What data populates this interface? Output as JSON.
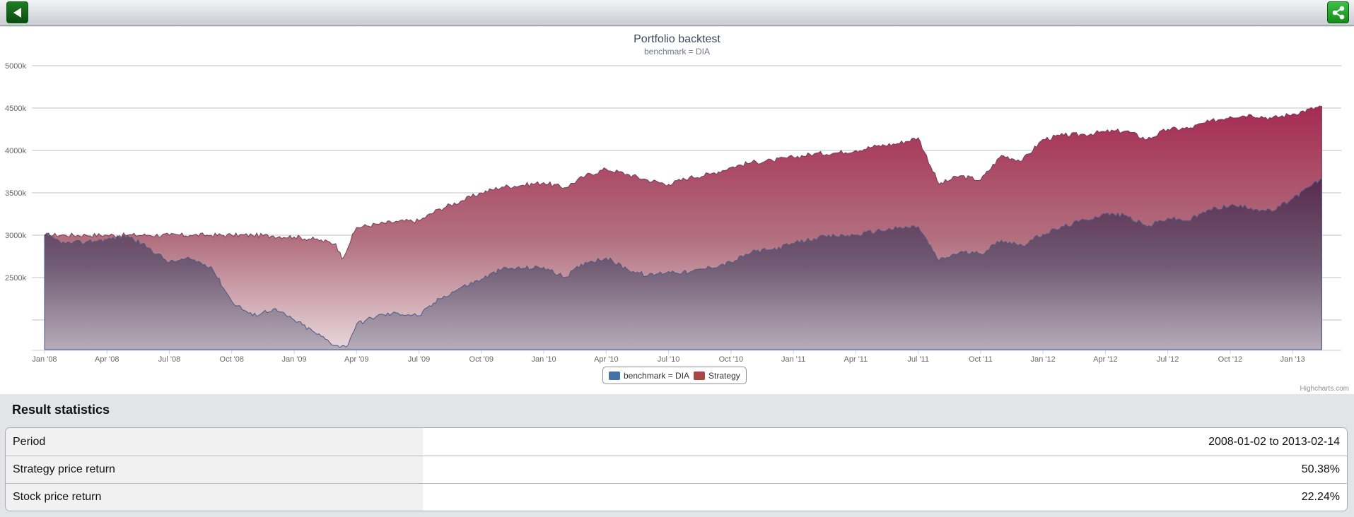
{
  "toolbar": {
    "back_icon": "back-arrow-icon",
    "share_icon": "share-icon"
  },
  "chart_data": {
    "type": "area",
    "title": "Portfolio backtest",
    "subtitle": "benchmark = DIA",
    "y_ticks": [
      "5000k",
      "4500k",
      "4000k",
      "3500k",
      "3000k",
      "2500k"
    ],
    "y_tick_values": [
      5000,
      4500,
      4000,
      3500,
      3000,
      2500
    ],
    "ylim": [
      1650,
      5000
    ],
    "x_ticks": [
      "Jan '08",
      "Apr '08",
      "Jul '08",
      "Oct '08",
      "Jan '09",
      "Apr '09",
      "Jul '09",
      "Oct '09",
      "Jan '10",
      "Apr '10",
      "Jul '10",
      "Oct '10",
      "Jan '11",
      "Apr '11",
      "Jul '11",
      "Oct '11",
      "Jan '12",
      "Apr '12",
      "Jul '12",
      "Oct '12",
      "Jan '13"
    ],
    "x_tick_months": [
      0,
      3,
      6,
      9,
      12,
      15,
      18,
      21,
      24,
      27,
      30,
      33,
      36,
      39,
      42,
      45,
      48,
      51,
      54,
      57,
      60
    ],
    "xlim_months": [
      0,
      61.5
    ],
    "grid": true,
    "legend_position": "bottom-center",
    "series": [
      {
        "name": "benchmark = DIA",
        "color": "#4572a7",
        "points": [
          [
            0,
            3000
          ],
          [
            1,
            2900
          ],
          [
            2,
            2920
          ],
          [
            3,
            2950
          ],
          [
            4,
            2990
          ],
          [
            5,
            2850
          ],
          [
            6,
            2680
          ],
          [
            7,
            2720
          ],
          [
            8,
            2630
          ],
          [
            9,
            2220
          ],
          [
            10,
            2050
          ],
          [
            11,
            2130
          ],
          [
            12,
            2000
          ],
          [
            13,
            1850
          ],
          [
            14,
            1700
          ],
          [
            14.5,
            1680
          ],
          [
            15,
            1950
          ],
          [
            16,
            2050
          ],
          [
            17,
            2080
          ],
          [
            18,
            2050
          ],
          [
            19,
            2250
          ],
          [
            20,
            2380
          ],
          [
            21,
            2480
          ],
          [
            22,
            2600
          ],
          [
            23,
            2610
          ],
          [
            24,
            2620
          ],
          [
            25,
            2500
          ],
          [
            26,
            2680
          ],
          [
            27,
            2730
          ],
          [
            28,
            2600
          ],
          [
            29,
            2520
          ],
          [
            30,
            2570
          ],
          [
            31,
            2560
          ],
          [
            32,
            2620
          ],
          [
            33,
            2680
          ],
          [
            34,
            2800
          ],
          [
            35,
            2830
          ],
          [
            36,
            2900
          ],
          [
            37,
            2960
          ],
          [
            38,
            2990
          ],
          [
            39,
            3000
          ],
          [
            40,
            3050
          ],
          [
            41,
            3080
          ],
          [
            42,
            3100
          ],
          [
            43,
            2700
          ],
          [
            44,
            2800
          ],
          [
            45,
            2780
          ],
          [
            46,
            2940
          ],
          [
            47,
            2880
          ],
          [
            48,
            3010
          ],
          [
            49,
            3100
          ],
          [
            50,
            3180
          ],
          [
            51,
            3250
          ],
          [
            52,
            3230
          ],
          [
            53,
            3100
          ],
          [
            54,
            3200
          ],
          [
            55,
            3170
          ],
          [
            56,
            3300
          ],
          [
            57,
            3350
          ],
          [
            58,
            3320
          ],
          [
            59,
            3280
          ],
          [
            60,
            3430
          ],
          [
            61.4,
            3670
          ]
        ]
      },
      {
        "name": "Strategy",
        "color": "#aa4643",
        "points": [
          [
            0,
            3000
          ],
          [
            1,
            3000
          ],
          [
            2,
            3000
          ],
          [
            3,
            3000
          ],
          [
            4,
            3000
          ],
          [
            5,
            3000
          ],
          [
            6,
            3000
          ],
          [
            7,
            3000
          ],
          [
            8,
            3000
          ],
          [
            9,
            3000
          ],
          [
            10,
            3000
          ],
          [
            11,
            2990
          ],
          [
            12,
            2980
          ],
          [
            13,
            2950
          ],
          [
            14,
            2900
          ],
          [
            14.3,
            2720
          ],
          [
            15,
            3090
          ],
          [
            16,
            3130
          ],
          [
            17,
            3160
          ],
          [
            18,
            3170
          ],
          [
            19,
            3310
          ],
          [
            20,
            3400
          ],
          [
            21,
            3500
          ],
          [
            22,
            3570
          ],
          [
            23,
            3590
          ],
          [
            24,
            3620
          ],
          [
            25,
            3560
          ],
          [
            26,
            3700
          ],
          [
            27,
            3780
          ],
          [
            28,
            3720
          ],
          [
            29,
            3650
          ],
          [
            30,
            3600
          ],
          [
            31,
            3680
          ],
          [
            32,
            3720
          ],
          [
            33,
            3800
          ],
          [
            34,
            3860
          ],
          [
            35,
            3880
          ],
          [
            36,
            3920
          ],
          [
            37,
            3960
          ],
          [
            38,
            3970
          ],
          [
            39,
            4000
          ],
          [
            40,
            4050
          ],
          [
            41,
            4080
          ],
          [
            42,
            4150
          ],
          [
            43,
            3600
          ],
          [
            44,
            3700
          ],
          [
            45,
            3650
          ],
          [
            46,
            3940
          ],
          [
            47,
            3880
          ],
          [
            48,
            4130
          ],
          [
            49,
            4180
          ],
          [
            50,
            4190
          ],
          [
            51,
            4220
          ],
          [
            52,
            4230
          ],
          [
            53,
            4130
          ],
          [
            54,
            4250
          ],
          [
            55,
            4260
          ],
          [
            56,
            4340
          ],
          [
            57,
            4400
          ],
          [
            58,
            4420
          ],
          [
            59,
            4380
          ],
          [
            60,
            4430
          ],
          [
            61.4,
            4520
          ]
        ]
      }
    ]
  },
  "legend": {
    "benchmark_label": "benchmark = DIA",
    "strategy_label": "Strategy"
  },
  "credits": "Highcharts.com",
  "stats": {
    "title": "Result statistics",
    "rows": [
      {
        "label": "Period",
        "value": "2008-01-02 to 2013-02-14"
      },
      {
        "label": "Strategy price return",
        "value": "50.38%"
      },
      {
        "label": "Stock price return",
        "value": "22.24%"
      }
    ]
  }
}
